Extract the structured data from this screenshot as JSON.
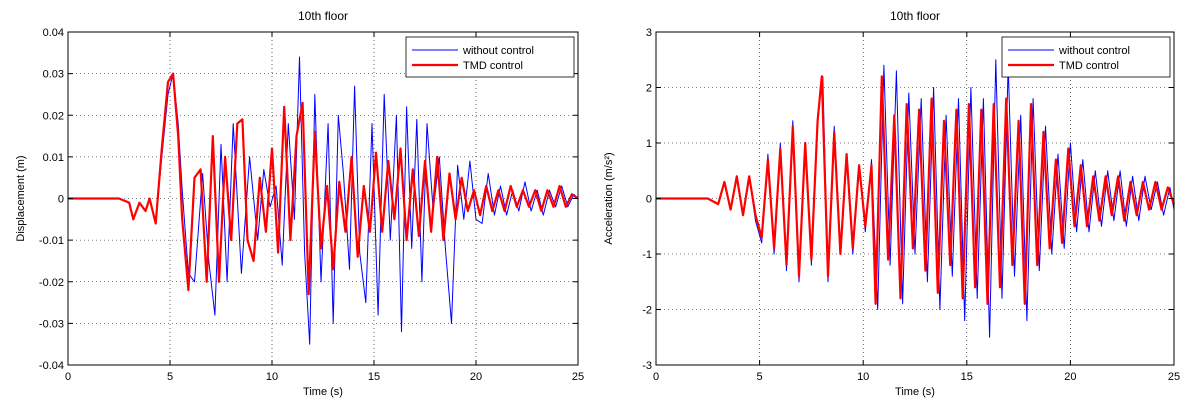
{
  "colors": {
    "series_blue": "#0000ff",
    "series_red": "#ff0000",
    "grid": "#000000"
  },
  "chart_data": [
    {
      "type": "line",
      "title": "10th floor",
      "xlabel": "Time (s)",
      "ylabel": "Displacement (m)",
      "xlim": [
        0,
        25
      ],
      "ylim": [
        -0.04,
        0.04
      ],
      "xticks": [
        0,
        5,
        10,
        15,
        20,
        25
      ],
      "xtick_labels": [
        "0",
        "5",
        "10",
        "15",
        "20",
        "25"
      ],
      "yticks": [
        -0.04,
        -0.03,
        -0.02,
        -0.01,
        0,
        0.01,
        0.02,
        0.03,
        0.04
      ],
      "ytick_labels": [
        "-0.04",
        "-0.03",
        "-0.02",
        "-0.01",
        "0",
        "0.01",
        "0.02",
        "0.03",
        "0.04"
      ],
      "grid": true,
      "legend_position": "top-right",
      "series": [
        {
          "name": "without control",
          "color": "#0000ff",
          "x": [
            0,
            2.5,
            3.0,
            3.2,
            3.5,
            3.8,
            4.0,
            4.3,
            4.6,
            4.9,
            5.15,
            5.4,
            5.6,
            5.9,
            6.2,
            6.6,
            6.9,
            7.2,
            7.5,
            7.8,
            8.1,
            8.5,
            8.9,
            9.3,
            9.6,
            9.9,
            10.2,
            10.5,
            10.8,
            11.1,
            11.35,
            11.6,
            11.85,
            12.1,
            12.4,
            12.75,
            13.0,
            13.25,
            13.5,
            13.8,
            14.05,
            14.3,
            14.6,
            14.9,
            15.2,
            15.5,
            15.8,
            16.1,
            16.35,
            16.6,
            16.85,
            17.1,
            17.35,
            17.6,
            17.9,
            18.2,
            18.5,
            18.8,
            19.1,
            19.4,
            19.7,
            20.0,
            20.3,
            20.6,
            20.9,
            21.2,
            21.5,
            21.8,
            22.1,
            22.4,
            22.7,
            23.0,
            23.3,
            23.6,
            23.9,
            24.2,
            24.5,
            24.8,
            25.0
          ],
          "values": [
            0,
            0,
            -0.001,
            -0.005,
            -0.001,
            -0.003,
            0,
            -0.006,
            0.01,
            0.025,
            0.03,
            0.018,
            0.002,
            -0.018,
            -0.02,
            0.006,
            -0.015,
            -0.028,
            0.013,
            -0.02,
            0.018,
            -0.018,
            0.01,
            -0.01,
            0.007,
            -0.002,
            0.003,
            -0.016,
            0.018,
            -0.005,
            0.034,
            -0.013,
            -0.035,
            0.025,
            -0.02,
            0.018,
            -0.03,
            0.02,
            0.006,
            -0.017,
            0.027,
            -0.013,
            -0.025,
            0.018,
            -0.028,
            0.025,
            -0.01,
            0.02,
            -0.032,
            0.022,
            -0.012,
            0.019,
            -0.02,
            0.018,
            -0.003,
            0.01,
            -0.012,
            -0.03,
            0.008,
            -0.005,
            0.009,
            -0.005,
            -0.006,
            0.006,
            -0.004,
            0.003,
            -0.004,
            0.002,
            -0.003,
            0.004,
            -0.003,
            0.002,
            -0.004,
            0.002,
            -0.002,
            0.003,
            -0.002,
            0.001,
            0.0
          ]
        },
        {
          "name": "TMD control",
          "color": "#ff0000",
          "x": [
            0,
            2.5,
            3.0,
            3.2,
            3.5,
            3.8,
            4.0,
            4.3,
            4.6,
            4.9,
            5.15,
            5.4,
            5.6,
            5.9,
            6.2,
            6.5,
            6.8,
            7.1,
            7.4,
            7.7,
            8.0,
            8.3,
            8.55,
            8.8,
            9.1,
            9.4,
            9.7,
            10.0,
            10.3,
            10.6,
            10.9,
            11.2,
            11.5,
            11.8,
            12.1,
            12.4,
            12.7,
            13.0,
            13.3,
            13.6,
            13.9,
            14.2,
            14.5,
            14.8,
            15.1,
            15.4,
            15.7,
            16.0,
            16.3,
            16.6,
            16.9,
            17.2,
            17.5,
            17.8,
            18.1,
            18.4,
            18.7,
            19.0,
            19.3,
            19.6,
            19.9,
            20.2,
            20.5,
            20.8,
            21.1,
            21.4,
            21.7,
            22.0,
            22.3,
            22.6,
            22.9,
            23.2,
            23.5,
            23.8,
            24.1,
            24.4,
            24.7,
            25.0
          ],
          "values": [
            0,
            0,
            -0.001,
            -0.005,
            -0.001,
            -0.003,
            0,
            -0.006,
            0.012,
            0.028,
            0.03,
            0.015,
            -0.005,
            -0.022,
            0.005,
            0.007,
            -0.02,
            0.015,
            -0.02,
            0.01,
            -0.01,
            0.018,
            0.019,
            -0.01,
            -0.015,
            0.005,
            -0.008,
            0.012,
            -0.013,
            0.022,
            -0.01,
            0.015,
            0.023,
            -0.023,
            0.016,
            -0.012,
            0.003,
            -0.017,
            0.004,
            -0.008,
            0.01,
            -0.014,
            0.003,
            -0.008,
            0.011,
            -0.008,
            0.009,
            -0.005,
            0.012,
            -0.01,
            0.007,
            -0.009,
            0.009,
            -0.008,
            0.01,
            -0.01,
            0.006,
            -0.005,
            0.005,
            -0.003,
            0.002,
            -0.004,
            0.003,
            -0.003,
            0.002,
            -0.003,
            0.003,
            -0.002,
            0.002,
            -0.002,
            0.002,
            -0.003,
            0.002,
            -0.002,
            0.003,
            -0.002,
            0.001,
            0.0
          ]
        }
      ]
    },
    {
      "type": "line",
      "title": "10th floor",
      "xlabel": "Time (s)",
      "ylabel": "Acceleration (m/s²)",
      "xlim": [
        0,
        25
      ],
      "ylim": [
        -3,
        3
      ],
      "xticks": [
        0,
        5,
        10,
        15,
        20,
        25
      ],
      "xtick_labels": [
        "0",
        "5",
        "10",
        "15",
        "20",
        "25"
      ],
      "yticks": [
        -3,
        -2,
        -1,
        0,
        1,
        2,
        3
      ],
      "ytick_labels": [
        "-3",
        "-2",
        "-1",
        "0",
        "1",
        "2",
        "3"
      ],
      "grid": true,
      "legend_position": "top-right",
      "series": [
        {
          "name": "without control",
          "color": "#0000ff",
          "x": [
            0,
            2.5,
            3.0,
            3.3,
            3.6,
            3.9,
            4.2,
            4.5,
            4.8,
            5.1,
            5.4,
            5.7,
            6.0,
            6.3,
            6.6,
            6.9,
            7.2,
            7.5,
            7.8,
            8.05,
            8.3,
            8.6,
            8.9,
            9.2,
            9.5,
            9.8,
            10.1,
            10.4,
            10.7,
            11.0,
            11.3,
            11.6,
            11.9,
            12.2,
            12.5,
            12.8,
            13.1,
            13.4,
            13.7,
            14.0,
            14.3,
            14.6,
            14.9,
            15.2,
            15.5,
            15.8,
            16.1,
            16.4,
            16.7,
            17.0,
            17.3,
            17.6,
            17.9,
            18.2,
            18.5,
            18.8,
            19.1,
            19.4,
            19.7,
            20.0,
            20.3,
            20.6,
            20.9,
            21.2,
            21.5,
            21.8,
            22.1,
            22.4,
            22.7,
            23.0,
            23.3,
            23.6,
            23.9,
            24.2,
            24.5,
            24.8,
            25.0
          ],
          "values": [
            0,
            0,
            -0.1,
            0.3,
            -0.2,
            0.4,
            -0.3,
            0.4,
            -0.4,
            -0.8,
            0.8,
            -1.0,
            1.0,
            -1.3,
            1.4,
            -1.5,
            1.0,
            -1.2,
            1.5,
            2.2,
            -1.5,
            1.3,
            -1.0,
            0.8,
            -1.0,
            0.6,
            -0.6,
            0.7,
            -2.0,
            2.4,
            -1.2,
            2.3,
            -1.9,
            1.9,
            -1.0,
            1.8,
            -1.5,
            2.0,
            -2.0,
            1.5,
            -1.4,
            1.8,
            -2.2,
            2.0,
            -1.8,
            1.8,
            -2.5,
            2.5,
            -1.8,
            2.4,
            -1.4,
            1.5,
            -2.2,
            1.8,
            -1.3,
            1.3,
            -1.0,
            0.8,
            -0.9,
            1.0,
            -0.6,
            0.7,
            -0.6,
            0.5,
            -0.5,
            0.5,
            -0.4,
            0.5,
            -0.5,
            0.4,
            -0.4,
            0.4,
            -0.2,
            0.3,
            -0.3,
            0.2,
            -0.2
          ]
        },
        {
          "name": "TMD control",
          "color": "#ff0000",
          "x": [
            0,
            2.5,
            3.0,
            3.3,
            3.6,
            3.9,
            4.2,
            4.5,
            4.8,
            5.1,
            5.4,
            5.7,
            6.0,
            6.3,
            6.6,
            6.9,
            7.2,
            7.5,
            7.8,
            8.0,
            8.3,
            8.6,
            8.9,
            9.2,
            9.5,
            9.8,
            10.1,
            10.4,
            10.6,
            10.9,
            11.2,
            11.5,
            11.8,
            12.1,
            12.4,
            12.7,
            13.0,
            13.3,
            13.6,
            13.9,
            14.2,
            14.5,
            14.8,
            15.1,
            15.4,
            15.7,
            16.0,
            16.3,
            16.6,
            16.9,
            17.2,
            17.5,
            17.8,
            18.1,
            18.4,
            18.7,
            19.0,
            19.3,
            19.6,
            19.9,
            20.2,
            20.5,
            20.8,
            21.1,
            21.4,
            21.7,
            22.0,
            22.3,
            22.6,
            22.9,
            23.2,
            23.5,
            23.8,
            24.1,
            24.4,
            24.7,
            25.0
          ],
          "values": [
            0,
            0,
            -0.1,
            0.3,
            -0.2,
            0.4,
            -0.3,
            0.4,
            -0.3,
            -0.7,
            0.7,
            -0.9,
            0.9,
            -1.2,
            1.3,
            -1.4,
            1.0,
            -1.1,
            1.4,
            2.2,
            -1.4,
            1.2,
            -1.0,
            0.8,
            -0.9,
            0.6,
            -0.5,
            0.6,
            -1.9,
            2.2,
            -1.1,
            1.5,
            -1.8,
            1.7,
            -0.9,
            1.6,
            -1.3,
            1.8,
            -1.7,
            1.4,
            -1.2,
            1.6,
            -1.8,
            1.7,
            -1.6,
            1.6,
            -1.9,
            1.7,
            -1.6,
            1.8,
            -1.2,
            1.4,
            -1.9,
            1.7,
            -1.2,
            1.2,
            -0.9,
            0.7,
            -0.8,
            0.9,
            -0.5,
            0.6,
            -0.5,
            0.4,
            -0.4,
            0.4,
            -0.3,
            0.4,
            -0.4,
            0.3,
            -0.3,
            0.3,
            -0.2,
            0.3,
            -0.2,
            0.2,
            -0.1
          ]
        }
      ]
    }
  ]
}
